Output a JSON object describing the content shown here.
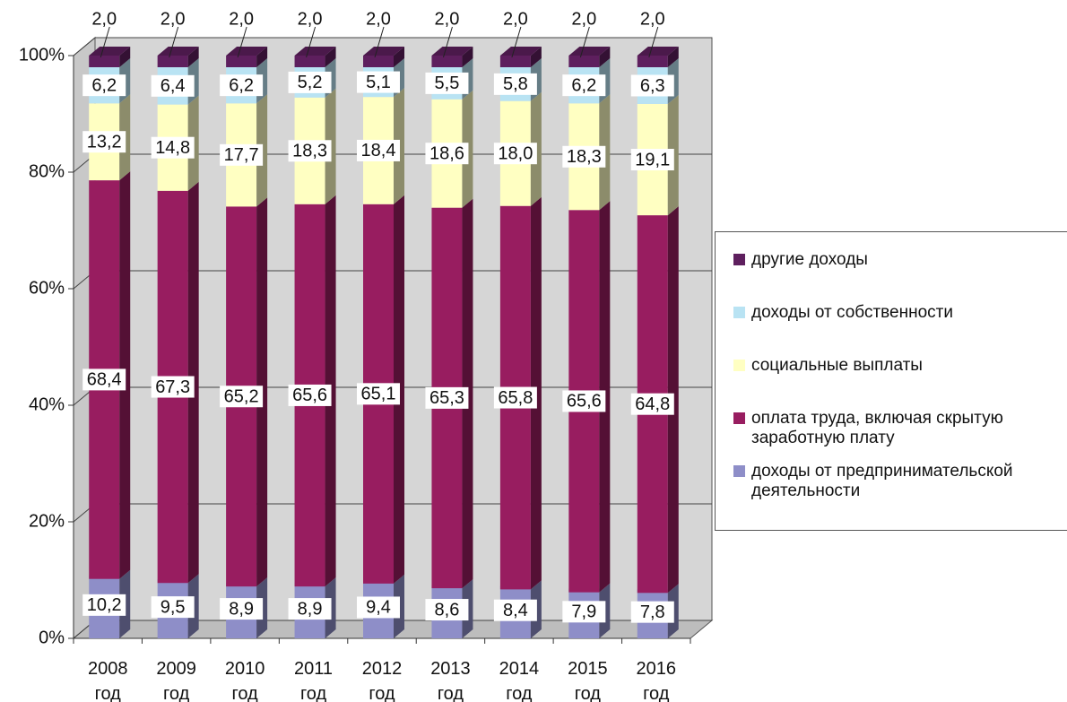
{
  "chart_data": {
    "type": "bar",
    "stacked": true,
    "categories": [
      "2008 год",
      "2009 год",
      "2010 год",
      "2011 год",
      "2012 год",
      "2013 год",
      "2014 год",
      "2015 год",
      "2016 год"
    ],
    "ylim": [
      0,
      100
    ],
    "yticks": [
      {
        "value": 0,
        "label": "0%"
      },
      {
        "value": 20,
        "label": "20%"
      },
      {
        "value": 40,
        "label": "40%"
      },
      {
        "value": 60,
        "label": "60%"
      },
      {
        "value": 80,
        "label": "80%"
      },
      {
        "value": 100,
        "label": "100%"
      }
    ],
    "grid": true,
    "series": [
      {
        "name": "доходы от предпринимательской деятельности",
        "color": "#8e8ec8",
        "values": [
          10.2,
          9.5,
          8.9,
          8.9,
          9.4,
          8.6,
          8.4,
          7.9,
          7.8
        ],
        "value_labels": [
          "10,2",
          "9,5",
          "8,9",
          "8,9",
          "9,4",
          "8,6",
          "8,4",
          "7,9",
          "7,8"
        ]
      },
      {
        "name": "оплата труда, включая скрытую заработную плату",
        "color": "#981d60",
        "values": [
          68.4,
          67.3,
          65.2,
          65.6,
          65.1,
          65.3,
          65.8,
          65.6,
          64.8
        ],
        "value_labels": [
          "68,4",
          "67,3",
          "65,2",
          "65,6",
          "65,1",
          "65,3",
          "65,8",
          "65,6",
          "64,8"
        ]
      },
      {
        "name": "социальные выплаты",
        "color": "#ffffc2",
        "values": [
          13.2,
          14.8,
          17.7,
          18.3,
          18.4,
          18.6,
          18.0,
          18.3,
          19.1
        ],
        "value_labels": [
          "13,2",
          "14,8",
          "17,7",
          "18,3",
          "18,4",
          "18,6",
          "18,0",
          "18,3",
          "19,1"
        ]
      },
      {
        "name": "доходы от собственности",
        "color": "#b9e3f3",
        "values": [
          6.2,
          6.4,
          6.2,
          5.2,
          5.1,
          5.5,
          5.8,
          6.2,
          6.3
        ],
        "value_labels": [
          "6,2",
          "6,4",
          "6,2",
          "5,2",
          "5,1",
          "5,5",
          "5,8",
          "6,2",
          "6,3"
        ]
      },
      {
        "name": "другие доходы",
        "color": "#5e1f5e",
        "values": [
          2.0,
          2.0,
          2.0,
          2.0,
          2.0,
          2.0,
          2.0,
          2.0,
          2.0
        ],
        "value_labels": [
          "2,0",
          "2,0",
          "2,0",
          "2,0",
          "2,0",
          "2,0",
          "2,0",
          "2,0",
          "2,0"
        ]
      }
    ],
    "legend": "right"
  }
}
